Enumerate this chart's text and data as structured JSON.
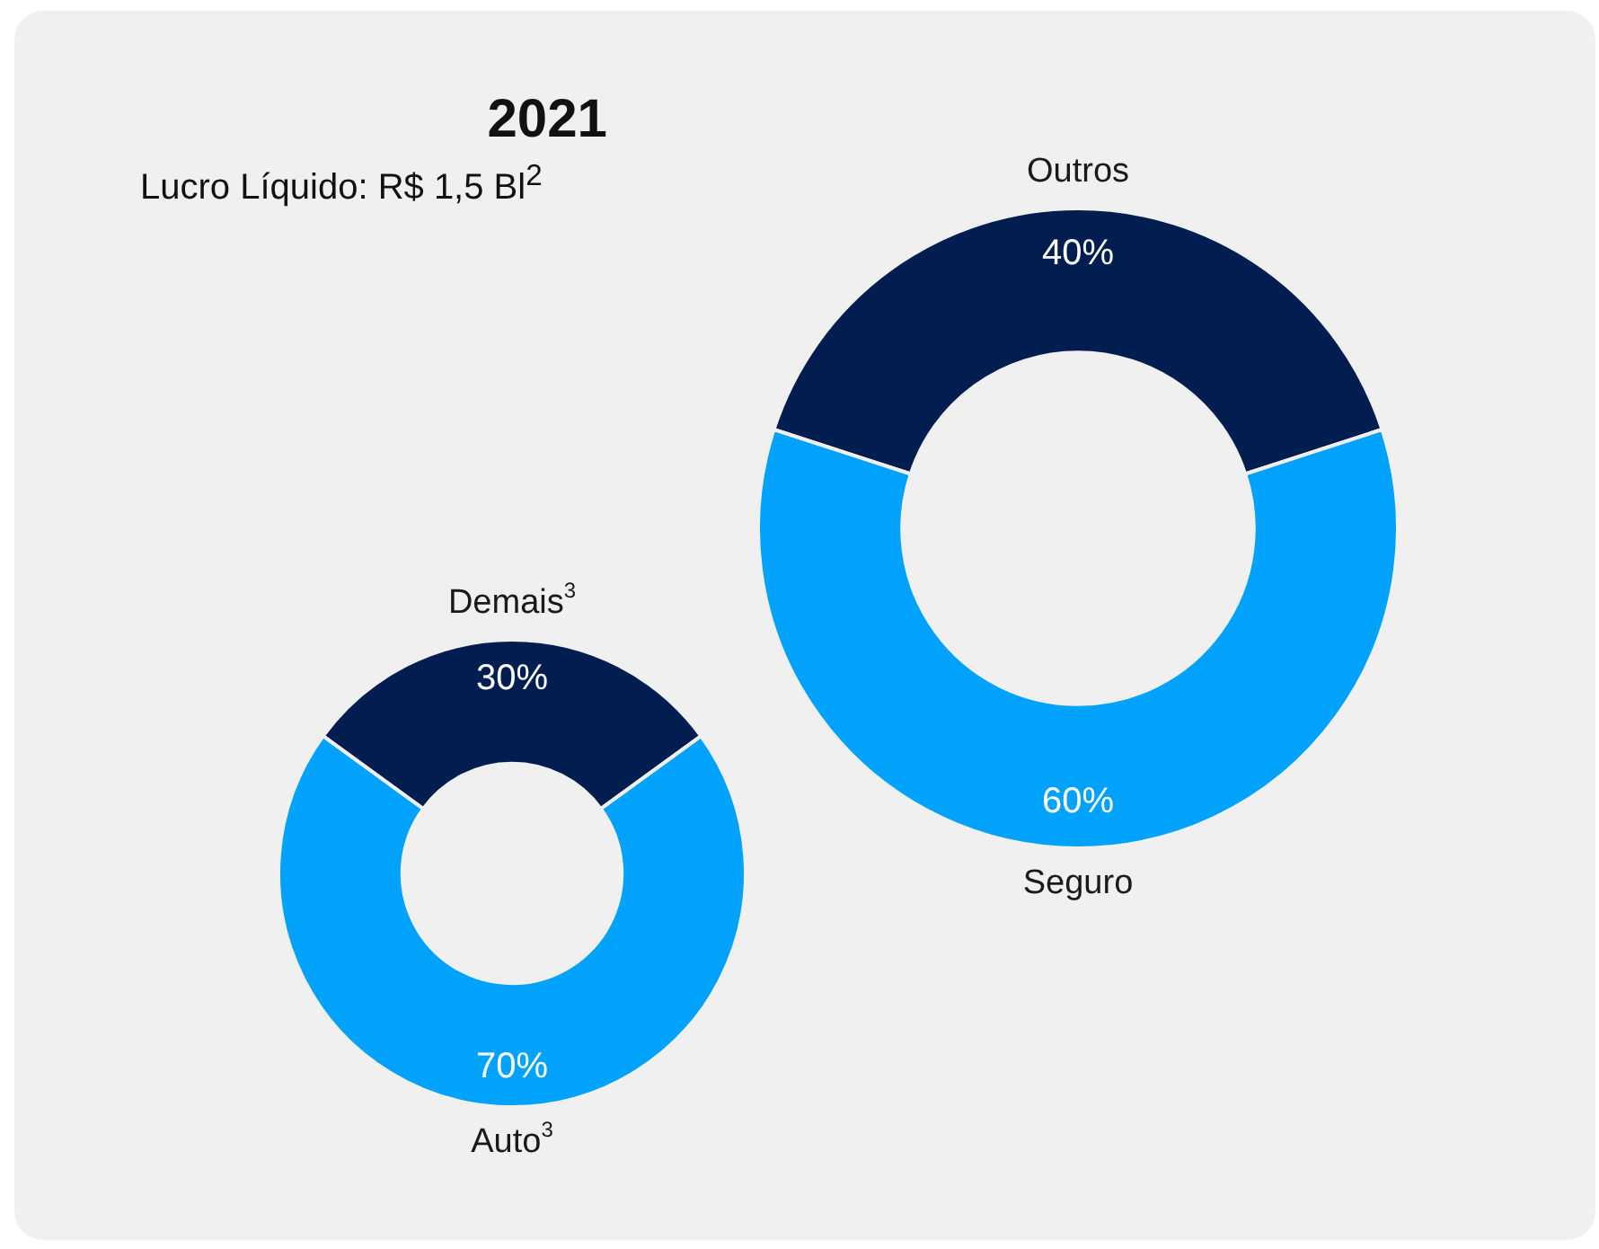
{
  "chart_data": [
    {
      "type": "donut",
      "title": "2021",
      "subtitle": "Lucro Líquido: R$ 1,5 Bl$^{2}$",
      "categories": [
        "Outros",
        "Seguro"
      ],
      "values": [
        40,
        60
      ],
      "colors": [
        "#021e50",
        "#00a2fc"
      ],
      "value_labels": [
        "40%",
        "60%"
      ]
    },
    {
      "type": "donut",
      "categories": [
        "Demais$^{3}$",
        "Auto$^{3}$"
      ],
      "values": [
        30,
        70
      ],
      "colors": [
        "#021e50",
        "#00a2fc"
      ],
      "value_labels": [
        "30%",
        "70%"
      ]
    }
  ]
}
